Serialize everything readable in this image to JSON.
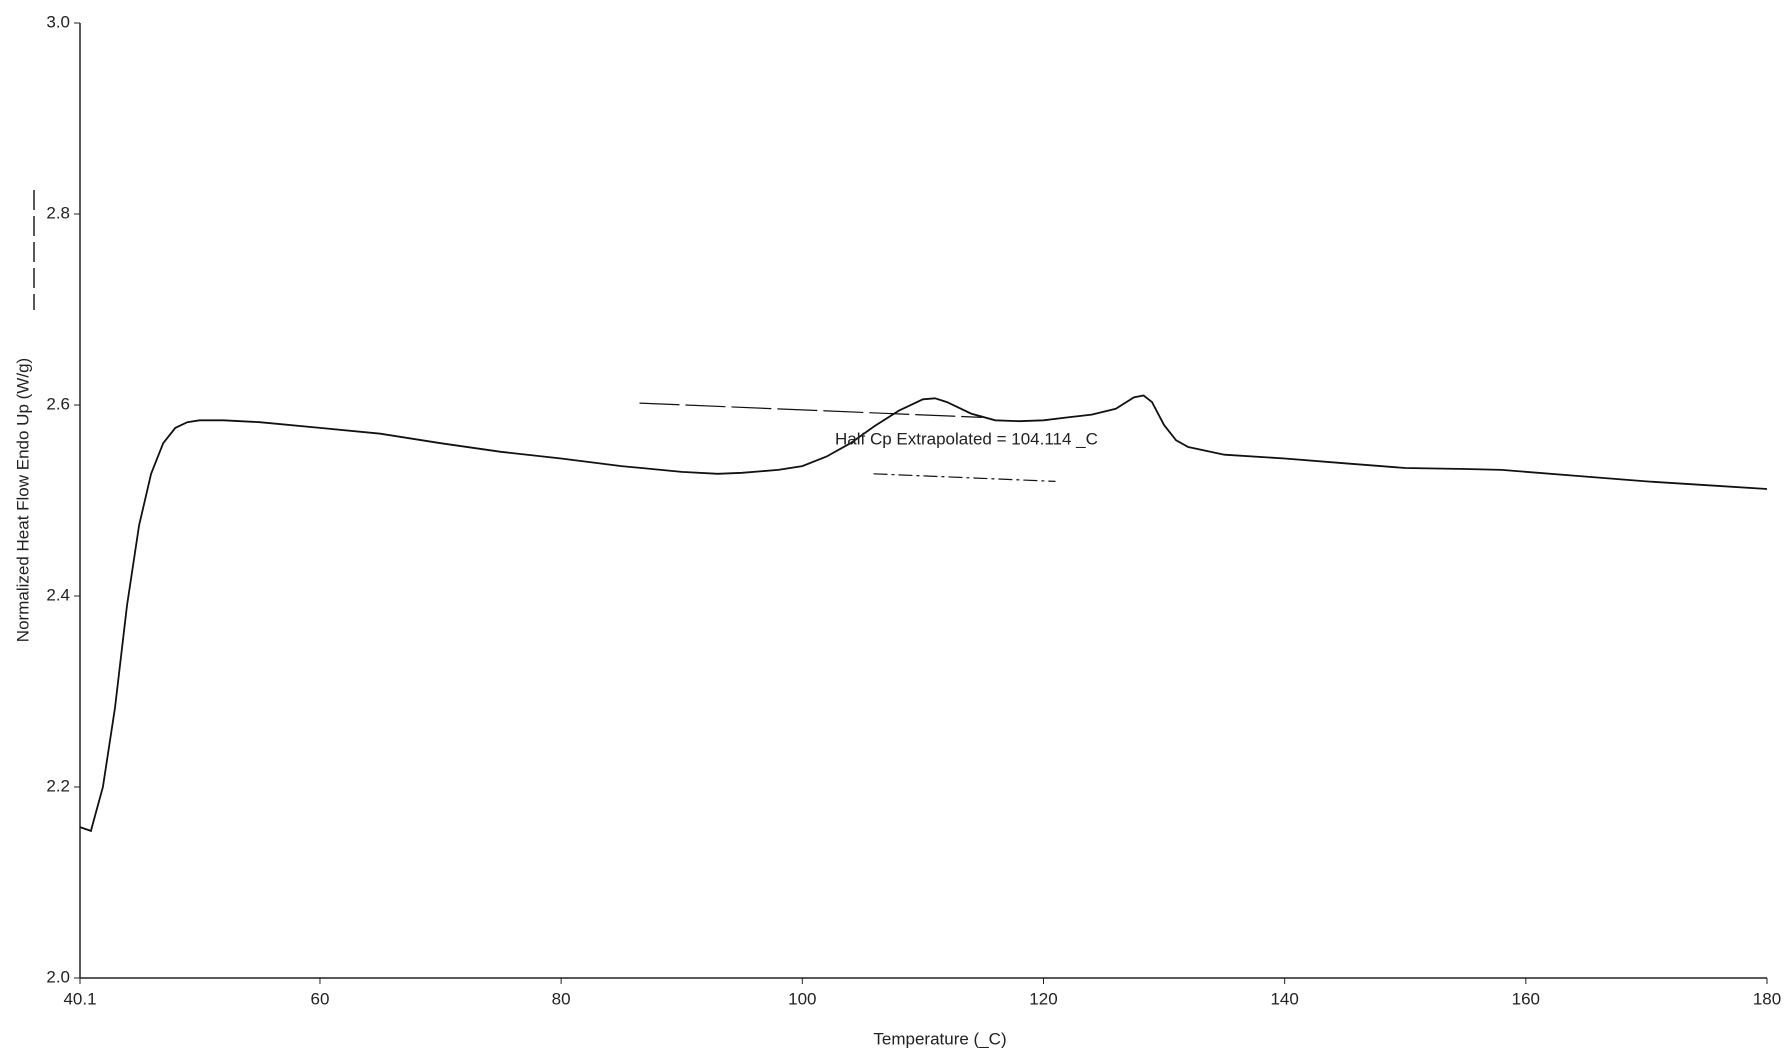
{
  "chart_data": {
    "type": "line",
    "xlabel": "Temperature (_C)",
    "ylabel": "Normalized Heat Flow Endo Up (W/g)",
    "annotation": "Half Cp Extrapolated = 104.114 _C",
    "xlim": [
      40.1,
      180
    ],
    "xticks": [
      40.1,
      60,
      80,
      100,
      120,
      140,
      160,
      180
    ],
    "ylim": [
      2.0,
      3.0
    ],
    "yticks": [
      {
        "value": 2.0,
        "label": "2.0"
      },
      2.2,
      2.4,
      2.6,
      2.8,
      {
        "value": 3.0,
        "label": "3.0"
      }
    ],
    "color": "#111111",
    "x": [
      40.1,
      41,
      42,
      43,
      44,
      45,
      46,
      47,
      48,
      49,
      50,
      52,
      55,
      60,
      65,
      70,
      75,
      80,
      85,
      90,
      93,
      95,
      98,
      100,
      102,
      104,
      106,
      108,
      110,
      111,
      112,
      114,
      116,
      118,
      120,
      122,
      124,
      126,
      127.5,
      128.3,
      129,
      130,
      131,
      132,
      135,
      140,
      145,
      150,
      155,
      158,
      165,
      170,
      175,
      180
    ],
    "values": [
      2.158,
      2.154,
      2.2,
      2.283,
      2.39,
      2.474,
      2.528,
      2.56,
      2.576,
      2.582,
      2.584,
      2.584,
      2.582,
      2.576,
      2.57,
      2.56,
      2.551,
      2.544,
      2.536,
      2.53,
      2.528,
      2.529,
      2.532,
      2.536,
      2.546,
      2.56,
      2.578,
      2.594,
      2.606,
      2.607,
      2.603,
      2.591,
      2.584,
      2.583,
      2.584,
      2.587,
      2.59,
      2.596,
      2.608,
      2.61,
      2.603,
      2.579,
      2.563,
      2.556,
      2.548,
      2.544,
      2.539,
      2.534,
      2.533,
      2.532,
      2.525,
      2.52,
      2.516,
      2.512
    ],
    "tangents": [
      {
        "x": [
          86.5,
          114.9
        ],
        "values": [
          2.602,
          2.587
        ]
      },
      {
        "x": [
          105.9,
          121.0
        ],
        "values": [
          2.528,
          2.52
        ]
      }
    ]
  }
}
